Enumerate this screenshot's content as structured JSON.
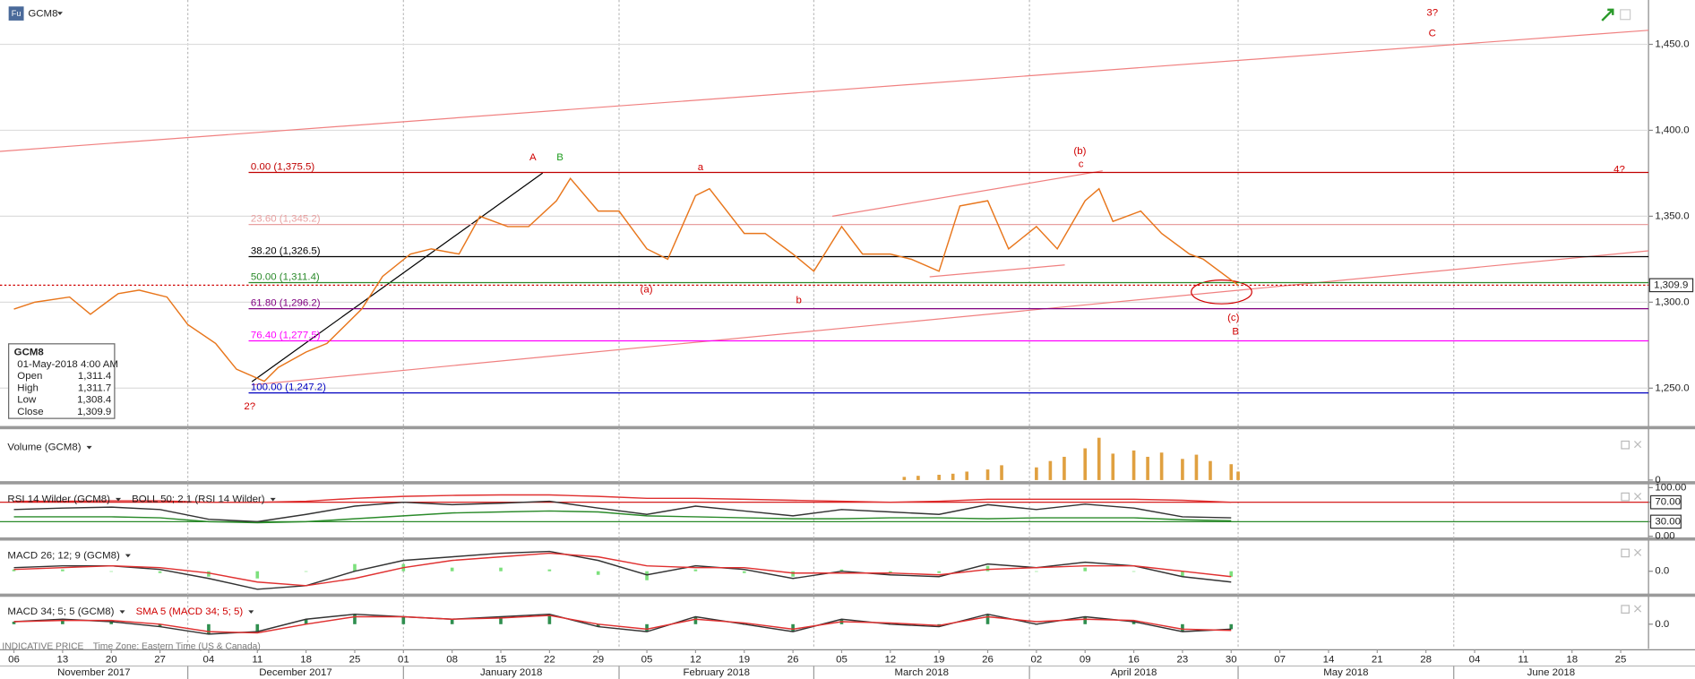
{
  "chart_data": [
    {
      "type": "line",
      "title": "GCM8",
      "x": [
        "2017-11-06",
        "2017-11-09",
        "2017-11-14",
        "2017-11-17",
        "2017-11-21",
        "2017-11-24",
        "2017-11-28",
        "2017-12-01",
        "2017-12-05",
        "2017-12-08",
        "2017-12-12",
        "2017-12-14",
        "2017-12-18",
        "2017-12-21",
        "2017-12-26",
        "2017-12-29",
        "2018-01-02",
        "2018-01-05",
        "2018-01-09",
        "2018-01-12",
        "2018-01-16",
        "2018-01-19",
        "2018-01-23",
        "2018-01-25",
        "2018-01-29",
        "2018-02-01",
        "2018-02-05",
        "2018-02-08",
        "2018-02-12",
        "2018-02-14",
        "2018-02-19",
        "2018-02-22",
        "2018-02-26",
        "2018-03-01",
        "2018-03-05",
        "2018-03-08",
        "2018-03-12",
        "2018-03-15",
        "2018-03-19",
        "2018-03-22",
        "2018-03-26",
        "2018-03-29",
        "2018-04-02",
        "2018-04-05",
        "2018-04-09",
        "2018-04-11",
        "2018-04-13",
        "2018-04-17",
        "2018-04-20",
        "2018-04-24",
        "2018-04-26",
        "2018-05-01"
      ],
      "series": [
        {
          "name": "GCM8",
          "color": "#e8761c",
          "values": [
            1296,
            1300,
            1303,
            1293,
            1305,
            1307,
            1303,
            1287,
            1276,
            1261,
            1254,
            1262,
            1271,
            1276,
            1296,
            1315,
            1328,
            1331,
            1328,
            1350,
            1344,
            1344,
            1359,
            1372,
            1353,
            1353,
            1331,
            1325,
            1362,
            1366,
            1340,
            1340,
            1328,
            1318,
            1344,
            1328,
            1328,
            1325,
            1318,
            1356,
            1359,
            1331,
            1344,
            1331,
            1359,
            1366,
            1347,
            1353,
            1340,
            1328,
            1325,
            1309.9
          ]
        }
      ],
      "xlim": [
        "2017-11-04",
        "2018-06-29"
      ],
      "xticks": [
        {
          "value": "2017-11-06",
          "label": "06"
        },
        {
          "value": "2017-11-13",
          "label": "13"
        },
        {
          "value": "2017-11-20",
          "label": "20"
        },
        {
          "value": "2017-11-27",
          "label": "27"
        },
        {
          "value": "2017-12-04",
          "label": "04"
        },
        {
          "value": "2017-12-11",
          "label": "11"
        },
        {
          "value": "2017-12-18",
          "label": "18"
        },
        {
          "value": "2017-12-25",
          "label": "25"
        },
        {
          "value": "2018-01-01",
          "label": "01"
        },
        {
          "value": "2018-01-08",
          "label": "08"
        },
        {
          "value": "2018-01-15",
          "label": "15"
        },
        {
          "value": "2018-01-22",
          "label": "22"
        },
        {
          "value": "2018-01-29",
          "label": "29"
        },
        {
          "value": "2018-02-05",
          "label": "05"
        },
        {
          "value": "2018-02-12",
          "label": "12"
        },
        {
          "value": "2018-02-19",
          "label": "19"
        },
        {
          "value": "2018-02-26",
          "label": "26"
        },
        {
          "value": "2018-03-05",
          "label": "05"
        },
        {
          "value": "2018-03-12",
          "label": "12"
        },
        {
          "value": "2018-03-19",
          "label": "19"
        },
        {
          "value": "2018-03-26",
          "label": "26"
        },
        {
          "value": "2018-04-02",
          "label": "02"
        },
        {
          "value": "2018-04-09",
          "label": "09"
        },
        {
          "value": "2018-04-16",
          "label": "16"
        },
        {
          "value": "2018-04-23",
          "label": "23"
        },
        {
          "value": "2018-04-30",
          "label": "30"
        },
        {
          "value": "2018-05-07",
          "label": "07"
        },
        {
          "value": "2018-05-14",
          "label": "14"
        },
        {
          "value": "2018-05-21",
          "label": "21"
        },
        {
          "value": "2018-05-28",
          "label": "28"
        },
        {
          "value": "2018-06-04",
          "label": "04"
        },
        {
          "value": "2018-06-11",
          "label": "11"
        },
        {
          "value": "2018-06-18",
          "label": "18"
        },
        {
          "value": "2018-06-25",
          "label": "25"
        }
      ],
      "months": [
        {
          "value": "2017-11-01",
          "label": "November 2017"
        },
        {
          "value": "2017-12-01",
          "label": "December 2017"
        },
        {
          "value": "2018-01-01",
          "label": "January 2018"
        },
        {
          "value": "2018-02-01",
          "label": "February 2018"
        },
        {
          "value": "2018-03-01",
          "label": "March 2018"
        },
        {
          "value": "2018-04-01",
          "label": "April 2018"
        },
        {
          "value": "2018-05-01",
          "label": "May 2018"
        },
        {
          "value": "2018-06-01",
          "label": "June 2018"
        }
      ],
      "ylim": [
        1228.6,
        1475.8
      ],
      "yticks": [
        {
          "value": 1250,
          "label": "1,250.0"
        },
        {
          "value": 1300,
          "label": "1,300.0"
        },
        {
          "value": 1350,
          "label": "1,350.0"
        },
        {
          "value": 1400,
          "label": "1,400.0"
        },
        {
          "value": 1450,
          "label": "1,450.0"
        }
      ],
      "grid": true,
      "fib_levels": [
        {
          "label": "0.00 (1,375.5)",
          "value": 1375.5,
          "color": "#c00000"
        },
        {
          "label": "23.60 (1,345.2)",
          "value": 1345.2,
          "color": "#e8a0a0"
        },
        {
          "label": "38.20 (1,326.5)",
          "value": 1326.5,
          "color": "#000000"
        },
        {
          "label": "50.00 (1,311.4)",
          "value": 1311.4,
          "color": "#2a8a2a"
        },
        {
          "label": "61.80 (1,296.2)",
          "value": 1296.2,
          "color": "#800080"
        },
        {
          "label": "76.40 (1,277.5)",
          "value": 1277.5,
          "color": "#ff00ff"
        },
        {
          "label": "100.00 (1,247.2)",
          "value": 1247.2,
          "color": "#0000c0"
        }
      ],
      "last_value": {
        "value": 1309.9,
        "label": "1,309.9",
        "color": "#d00000"
      },
      "annotations": [
        {
          "text": "A",
          "color": "#d00000"
        },
        {
          "text": "B",
          "color": "#1a9a1a"
        },
        {
          "text": "a",
          "color": "#d00000"
        },
        {
          "text": "(b)",
          "color": "#d00000"
        },
        {
          "text": "c",
          "color": "#d00000"
        },
        {
          "text": "(a)",
          "color": "#d00000"
        },
        {
          "text": "b",
          "color": "#d00000"
        },
        {
          "text": "(c)",
          "color": "#d00000"
        },
        {
          "text": "B",
          "color": "#d00000"
        },
        {
          "text": "2?",
          "color": "#d00000"
        },
        {
          "text": "3?",
          "color": "#d00000"
        },
        {
          "text": "C",
          "color": "#d00000"
        },
        {
          "text": "4?",
          "color": "#d00000"
        }
      ]
    },
    {
      "type": "bar",
      "x": [
        "2018-03-14",
        "2018-03-16",
        "2018-03-19",
        "2018-03-21",
        "2018-03-23",
        "2018-03-26",
        "2018-03-28",
        "2018-04-02",
        "2018-04-04",
        "2018-04-06",
        "2018-04-09",
        "2018-04-11",
        "2018-04-13",
        "2018-04-16",
        "2018-04-18",
        "2018-04-20",
        "2018-04-23",
        "2018-04-25",
        "2018-04-27",
        "2018-04-30",
        "2018-05-01"
      ],
      "series": [
        {
          "name": "Volume (GCM8)",
          "color": "#e0a040",
          "type": "bar",
          "values": [
            3,
            4,
            5,
            6,
            8,
            10,
            14,
            12,
            18,
            22,
            30,
            40,
            25,
            28,
            22,
            26,
            20,
            24,
            18,
            15,
            8
          ]
        }
      ],
      "ylim": [
        0,
        45
      ],
      "yticks": [
        0
      ]
    },
    {
      "type": "line",
      "x": [
        "2017-11-06",
        "2017-11-13",
        "2017-11-20",
        "2017-11-27",
        "2017-12-04",
        "2017-12-11",
        "2017-12-18",
        "2017-12-25",
        "2018-01-01",
        "2018-01-08",
        "2018-01-15",
        "2018-01-22",
        "2018-01-29",
        "2018-02-05",
        "2018-02-12",
        "2018-02-19",
        "2018-02-26",
        "2018-03-05",
        "2018-03-12",
        "2018-03-19",
        "2018-03-26",
        "2018-04-02",
        "2018-04-09",
        "2018-04-16",
        "2018-04-23",
        "2018-04-30"
      ],
      "series": [
        {
          "name": "RSI 14 Wilder (GCM8)",
          "color": "#333333",
          "values": [
            55,
            58,
            60,
            55,
            35,
            30,
            45,
            62,
            70,
            65,
            68,
            72,
            58,
            45,
            62,
            52,
            42,
            55,
            50,
            45,
            65,
            55,
            66,
            58,
            40,
            38
          ]
        },
        {
          "name": "BOLL 50; 2.1 (RSI 14 Wilder)",
          "color": "#e03030",
          "values": [
            72,
            72,
            73,
            73,
            70,
            70,
            72,
            78,
            82,
            84,
            85,
            85,
            82,
            78,
            78,
            76,
            74,
            72,
            70,
            72,
            76,
            76,
            76,
            76,
            74,
            70
          ]
        },
        {
          "color": "#2a8a2a",
          "values": [
            40,
            40,
            40,
            38,
            30,
            28,
            30,
            36,
            42,
            48,
            50,
            52,
            50,
            42,
            40,
            38,
            36,
            36,
            38,
            38,
            36,
            38,
            38,
            38,
            34,
            32
          ]
        }
      ],
      "ylim": [
        -2.2,
        106.7
      ],
      "yticks": [
        {
          "value": 0,
          "label": "0.00"
        },
        {
          "value": 30,
          "label": "30.00"
        },
        {
          "value": 70,
          "label": "70.00"
        },
        {
          "value": 100,
          "label": "100.00"
        }
      ],
      "levels": [
        {
          "value": 70,
          "color": "#d00000"
        },
        {
          "value": 30,
          "color": "#2a8a2a"
        }
      ]
    },
    {
      "type": "line",
      "x": [
        "2017-11-06",
        "2017-11-13",
        "2017-11-20",
        "2017-11-27",
        "2017-12-04",
        "2017-12-11",
        "2017-12-18",
        "2017-12-25",
        "2018-01-01",
        "2018-01-08",
        "2018-01-15",
        "2018-01-22",
        "2018-01-29",
        "2018-02-05",
        "2018-02-12",
        "2018-02-19",
        "2018-02-26",
        "2018-03-05",
        "2018-03-12",
        "2018-03-19",
        "2018-03-26",
        "2018-04-02",
        "2018-04-09",
        "2018-04-16",
        "2018-04-23",
        "2018-04-30"
      ],
      "series": [
        {
          "color": "#7de07d",
          "type": "bar",
          "values": [
            1,
            1,
            0,
            -1,
            -3,
            -4,
            0,
            4,
            4,
            2,
            2,
            1,
            -2,
            -5,
            1,
            -1,
            -3,
            1,
            -1,
            -1,
            3,
            0,
            2,
            0,
            -3,
            -3
          ]
        },
        {
          "name": "MACD 26; 12; 9 (GCM8)",
          "color": "#333333",
          "values": [
            2,
            3,
            3,
            1,
            -4,
            -10,
            -8,
            0,
            6,
            8,
            10,
            11,
            6,
            -2,
            3,
            1,
            -4,
            0,
            -2,
            -3,
            4,
            2,
            5,
            3,
            -3,
            -6
          ]
        },
        {
          "color": "#e03030",
          "values": [
            1,
            2,
            3,
            2,
            -1,
            -6,
            -8,
            -4,
            2,
            6,
            8,
            10,
            8,
            3,
            2,
            2,
            -1,
            -1,
            -1,
            -2,
            1,
            2,
            3,
            3,
            0,
            -3
          ]
        }
      ],
      "ylim": [
        -13,
        17
      ],
      "yticks": [
        {
          "value": 0,
          "label": "0.0"
        }
      ]
    },
    {
      "type": "line",
      "x": [
        "2017-11-06",
        "2017-11-13",
        "2017-11-20",
        "2017-11-27",
        "2017-12-04",
        "2017-12-11",
        "2017-12-18",
        "2017-12-25",
        "2018-01-01",
        "2018-01-08",
        "2018-01-15",
        "2018-01-22",
        "2018-01-29",
        "2018-02-05",
        "2018-02-12",
        "2018-02-19",
        "2018-02-26",
        "2018-03-05",
        "2018-03-12",
        "2018-03-19",
        "2018-03-26",
        "2018-04-02",
        "2018-04-09",
        "2018-04-16",
        "2018-04-23",
        "2018-04-30"
      ],
      "series": [
        {
          "color": "#2f8f4f",
          "type": "bar",
          "values": [
            1,
            2,
            1,
            -1,
            -4,
            -3,
            2,
            4,
            3,
            2,
            3,
            4,
            -1,
            -3,
            3,
            0,
            -3,
            2,
            0,
            -1,
            4,
            0,
            3,
            1,
            -3,
            -2
          ]
        },
        {
          "name": "MACD 34; 5; 5 (GCM8)",
          "color": "#333333",
          "values": [
            1,
            2,
            1,
            -1,
            -4,
            -3,
            2,
            4,
            3,
            2,
            3,
            4,
            -1,
            -3,
            3,
            0,
            -3,
            2,
            0,
            -1,
            4,
            0,
            3,
            1,
            -3,
            -2
          ]
        },
        {
          "name": "SMA 5 (MACD 34; 5; 5)",
          "color": "#e03030",
          "name_color": "#d00000",
          "values": [
            1,
            1.5,
            1.5,
            0,
            -3,
            -3.5,
            0,
            3,
            3,
            2,
            2.5,
            3.5,
            0,
            -2,
            2,
            0.5,
            -2,
            1,
            0.5,
            -0.5,
            3,
            1,
            2,
            1.5,
            -2,
            -2.5
          ]
        }
      ],
      "ylim": [
        -9,
        11
      ],
      "yticks": [
        {
          "value": 0,
          "label": "0.0"
        }
      ]
    }
  ],
  "toolbar": {
    "icon": "Fu"
  },
  "ohlc_box": {
    "symbol": "GCM8",
    "date": "01-May-2018 4:00 AM",
    "rows": [
      [
        "Open",
        "1,311.4"
      ],
      [
        "High",
        "1,311.7"
      ],
      [
        "Low",
        "1,308.4"
      ],
      [
        "Close",
        "1,309.9"
      ]
    ]
  },
  "footer": {
    "price_type": "INDICATIVE PRICE",
    "time_zone": "Time Zone: Eastern Time (US & Canada)"
  }
}
